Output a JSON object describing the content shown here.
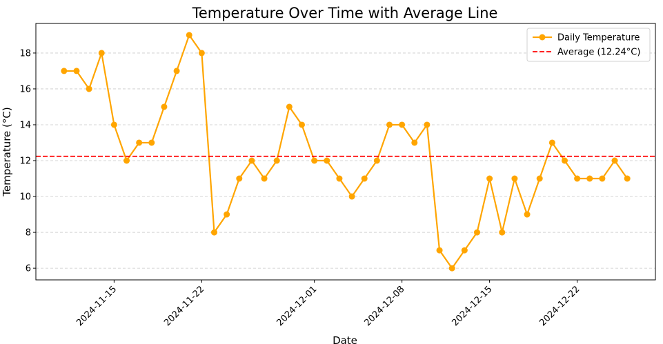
{
  "chart_data": {
    "type": "line",
    "title": "Temperature Over Time with Average Line",
    "xlabel": "Date",
    "ylabel": "Temperature (°C)",
    "x": [
      "2024-11-11",
      "2024-11-12",
      "2024-11-13",
      "2024-11-14",
      "2024-11-15",
      "2024-11-16",
      "2024-11-17",
      "2024-11-18",
      "2024-11-19",
      "2024-11-20",
      "2024-11-21",
      "2024-11-22",
      "2024-11-23",
      "2024-11-24",
      "2024-11-25",
      "2024-11-26",
      "2024-11-27",
      "2024-11-28",
      "2024-11-29",
      "2024-11-30",
      "2024-12-01",
      "2024-12-02",
      "2024-12-03",
      "2024-12-04",
      "2024-12-05",
      "2024-12-06",
      "2024-12-07",
      "2024-12-08",
      "2024-12-09",
      "2024-12-10",
      "2024-12-11",
      "2024-12-12",
      "2024-12-13",
      "2024-12-14",
      "2024-12-15",
      "2024-12-16",
      "2024-12-17",
      "2024-12-18",
      "2024-12-19",
      "2024-12-20",
      "2024-12-21",
      "2024-12-22",
      "2024-12-23",
      "2024-12-24",
      "2024-12-25",
      "2024-12-26"
    ],
    "series": [
      {
        "name": "Daily Temperature",
        "color": "#ffa500",
        "values": [
          17,
          17,
          16,
          18,
          14,
          12,
          13,
          13,
          15,
          17,
          19,
          18,
          8,
          9,
          11,
          12,
          11,
          12,
          15,
          14,
          12,
          12,
          11,
          10,
          11,
          12,
          14,
          14,
          13,
          14,
          7,
          6,
          7,
          8,
          11,
          8,
          11,
          9,
          11,
          13,
          12,
          11,
          11,
          11,
          12,
          11
        ]
      }
    ],
    "average": {
      "name": "Average (12.24°C)",
      "value": 12.24,
      "color": "#ff0000"
    },
    "xlim": [
      "2024-11-08T18:00:00Z",
      "2024-12-28T06:00:00Z"
    ],
    "xticks": [
      "2024-11-15",
      "2024-11-22",
      "2024-12-01",
      "2024-12-08",
      "2024-12-15",
      "2024-12-22"
    ],
    "ylim": [
      5.35,
      19.65
    ],
    "yticks": [
      6,
      8,
      10,
      12,
      14,
      16,
      18
    ],
    "grid": "y",
    "legend": "upper right"
  }
}
